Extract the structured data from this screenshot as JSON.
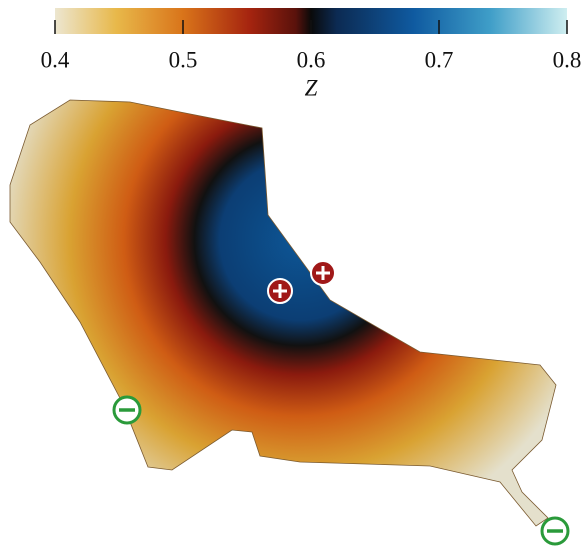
{
  "chart_data": {
    "type": "colorbar",
    "xlabel": "Z",
    "xlim": [
      0.4,
      0.8
    ],
    "xticks": [
      0.4,
      0.5,
      0.6,
      0.7,
      0.8
    ]
  }
}
